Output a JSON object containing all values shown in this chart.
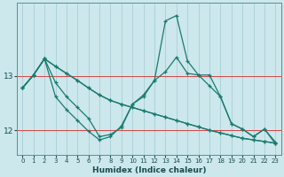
{
  "xlabel": "Humidex (Indice chaleur)",
  "background_color": "#cce8ed",
  "line_color": "#1a7a6e",
  "grid_color": "#aacdd6",
  "x_values": [
    0,
    1,
    2,
    3,
    4,
    5,
    6,
    7,
    8,
    9,
    10,
    11,
    12,
    13,
    14,
    15,
    16,
    17,
    18,
    19,
    20,
    21,
    22,
    23
  ],
  "series": [
    [
      12.78,
      13.02,
      13.32,
      13.18,
      13.05,
      12.92,
      12.78,
      12.65,
      12.55,
      12.48,
      12.42,
      12.36,
      12.3,
      12.24,
      12.18,
      12.12,
      12.06,
      12.0,
      11.95,
      11.9,
      11.85,
      11.82,
      11.79,
      11.76
    ],
    [
      12.78,
      13.02,
      13.32,
      13.18,
      13.05,
      12.92,
      12.78,
      12.65,
      12.55,
      12.48,
      12.42,
      12.36,
      12.3,
      12.24,
      12.18,
      12.12,
      12.06,
      12.0,
      11.95,
      11.9,
      11.85,
      11.82,
      11.79,
      11.76
    ],
    [
      12.78,
      13.02,
      13.32,
      12.88,
      12.62,
      12.42,
      12.22,
      11.88,
      11.92,
      12.05,
      12.48,
      12.62,
      12.92,
      13.08,
      13.35,
      13.05,
      13.02,
      12.82,
      12.62,
      12.12,
      12.02,
      11.88,
      12.02,
      11.78
    ],
    [
      12.78,
      13.02,
      13.32,
      12.62,
      12.38,
      12.18,
      11.98,
      11.82,
      11.88,
      12.08,
      12.48,
      12.65,
      12.92,
      14.02,
      14.12,
      13.28,
      13.02,
      13.02,
      12.62,
      12.12,
      12.02,
      11.88,
      12.02,
      11.75
    ]
  ],
  "ylim": [
    11.55,
    14.35
  ],
  "yticks": [
    12,
    13
  ],
  "xlim": [
    -0.5,
    23.5
  ],
  "xticks": [
    0,
    1,
    2,
    3,
    4,
    5,
    6,
    7,
    8,
    9,
    10,
    11,
    12,
    13,
    14,
    15,
    16,
    17,
    18,
    19,
    20,
    21,
    22,
    23
  ],
  "marker": "+",
  "markersize": 3.5,
  "linewidth": 0.9,
  "red_line_color": "#dd4444",
  "spine_color": "#5a9090",
  "xlabel_color": "#1a4a4a"
}
